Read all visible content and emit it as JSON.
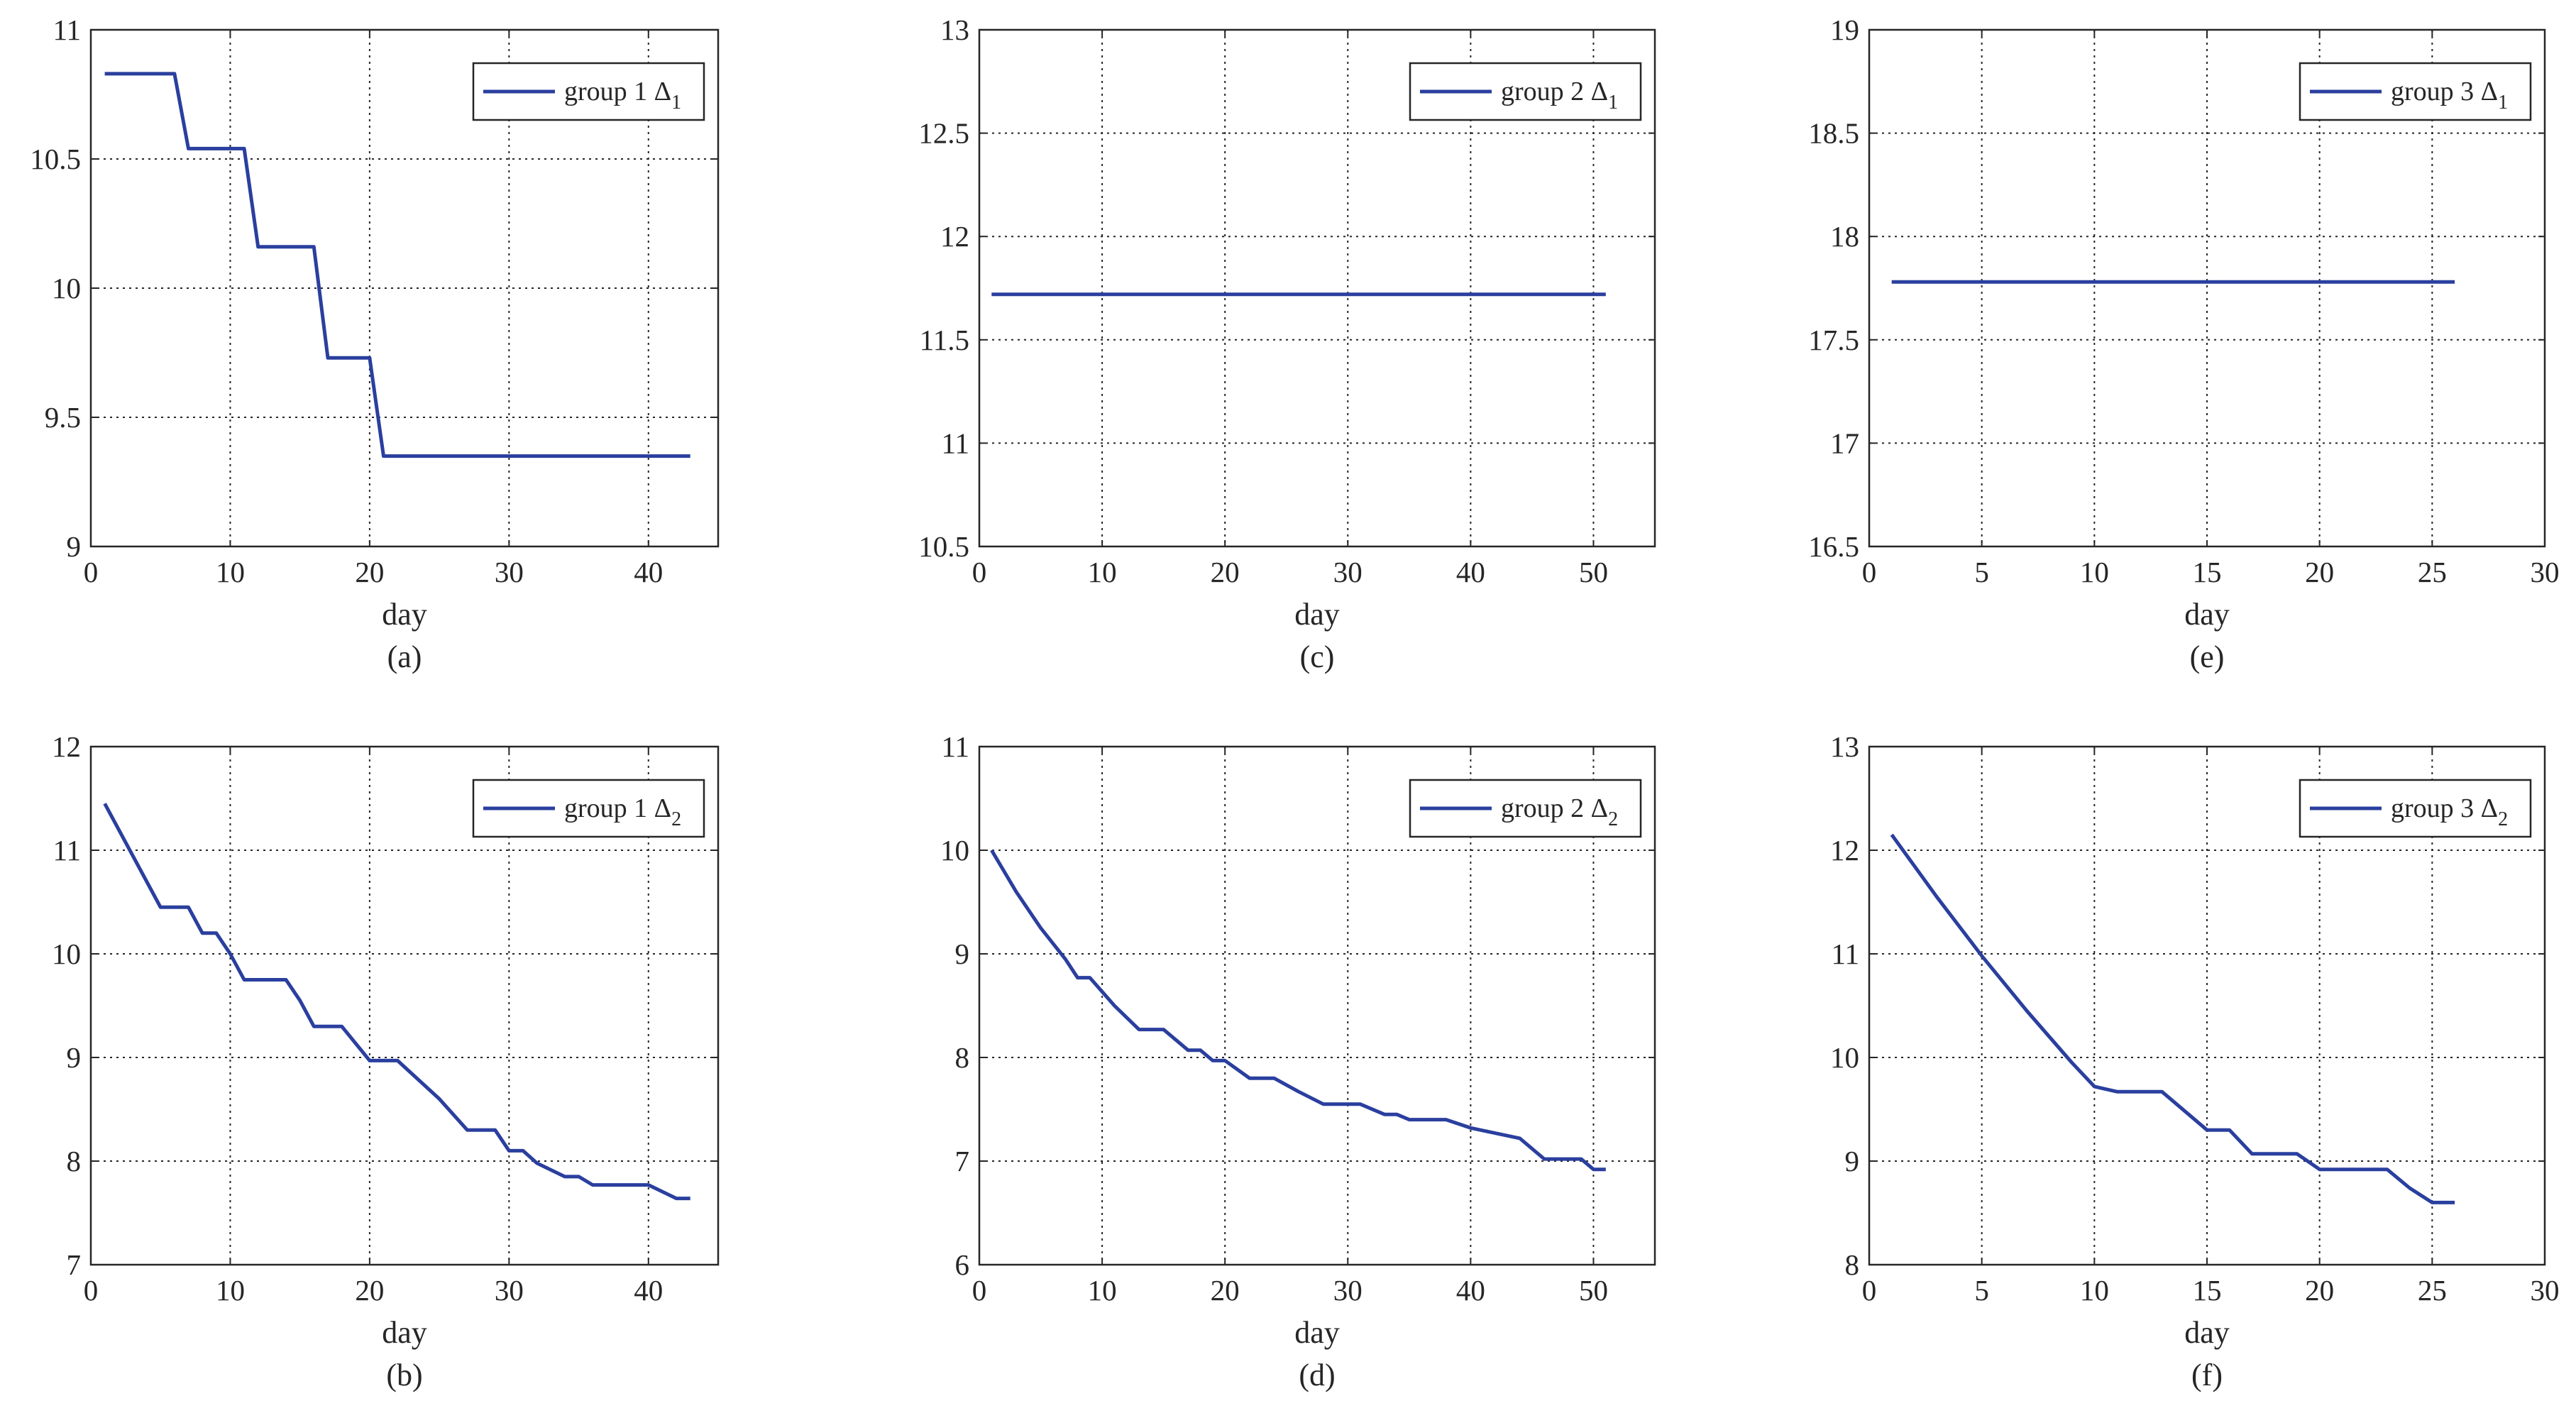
{
  "chart_data": [
    {
      "type": "line",
      "caption": "(a)",
      "xlabel": "day",
      "ylabel": "",
      "xlim": [
        0,
        45
      ],
      "ylim": [
        9,
        11
      ],
      "xticks": [
        0,
        10,
        20,
        30,
        40
      ],
      "yticks": [
        9,
        9.5,
        10,
        10.5,
        11
      ],
      "grid": true,
      "legend_position": "top-right",
      "series": [
        {
          "name": "group 1 Δ",
          "name_subscript": "1",
          "color": "#2a3f9e",
          "x": [
            1,
            6,
            7,
            11,
            12,
            16,
            17,
            20,
            21,
            43
          ],
          "y": [
            10.83,
            10.83,
            10.54,
            10.54,
            10.16,
            10.16,
            9.73,
            9.73,
            9.35,
            9.35
          ]
        }
      ]
    },
    {
      "type": "line",
      "caption": "(b)",
      "xlabel": "day",
      "ylabel": "",
      "xlim": [
        0,
        45
      ],
      "ylim": [
        7,
        12
      ],
      "xticks": [
        0,
        10,
        20,
        30,
        40
      ],
      "yticks": [
        7,
        8,
        9,
        10,
        11,
        12
      ],
      "grid": true,
      "legend_position": "top-right",
      "series": [
        {
          "name": "group 1 Δ",
          "name_subscript": "2",
          "color": "#2a3f9e",
          "x": [
            1,
            3,
            5,
            7,
            8,
            9,
            10,
            11,
            12,
            14,
            15,
            16,
            18,
            20,
            22,
            25,
            27,
            29,
            30,
            31,
            32,
            34,
            35,
            36,
            38,
            40,
            42,
            43
          ],
          "y": [
            11.45,
            10.95,
            10.45,
            10.45,
            10.2,
            10.2,
            10.0,
            9.75,
            9.75,
            9.75,
            9.55,
            9.3,
            9.3,
            8.97,
            8.97,
            8.6,
            8.3,
            8.3,
            8.1,
            8.1,
            7.98,
            7.85,
            7.85,
            7.77,
            7.77,
            7.77,
            7.64,
            7.64
          ]
        }
      ]
    },
    {
      "type": "line",
      "caption": "(c)",
      "xlabel": "day",
      "ylabel": "",
      "xlim": [
        0,
        55
      ],
      "ylim": [
        10.5,
        13
      ],
      "xticks": [
        0,
        10,
        20,
        30,
        40,
        50
      ],
      "yticks": [
        10.5,
        11,
        11.5,
        12,
        12.5,
        13
      ],
      "grid": true,
      "legend_position": "top-right",
      "series": [
        {
          "name": "group 2 Δ",
          "name_subscript": "1",
          "color": "#2a3f9e",
          "x": [
            1,
            51
          ],
          "y": [
            11.72,
            11.72
          ]
        }
      ]
    },
    {
      "type": "line",
      "caption": "(d)",
      "xlabel": "day",
      "ylabel": "",
      "xlim": [
        0,
        55
      ],
      "ylim": [
        6,
        11
      ],
      "xticks": [
        0,
        10,
        20,
        30,
        40,
        50
      ],
      "yticks": [
        6,
        7,
        8,
        9,
        10,
        11
      ],
      "grid": true,
      "legend_position": "top-right",
      "series": [
        {
          "name": "group 2 Δ",
          "name_subscript": "2",
          "color": "#2a3f9e",
          "x": [
            1,
            3,
            5,
            7,
            8,
            9,
            11,
            13,
            15,
            17,
            18,
            19,
            20,
            22,
            24,
            26,
            28,
            31,
            33,
            34,
            35,
            38,
            40,
            44,
            46,
            49,
            50,
            51
          ],
          "y": [
            10.0,
            9.6,
            9.25,
            8.95,
            8.77,
            8.77,
            8.5,
            8.27,
            8.27,
            8.07,
            8.07,
            7.97,
            7.97,
            7.8,
            7.8,
            7.67,
            7.55,
            7.55,
            7.45,
            7.45,
            7.4,
            7.4,
            7.32,
            7.22,
            7.02,
            7.02,
            6.92,
            6.92
          ]
        }
      ]
    },
    {
      "type": "line",
      "caption": "(e)",
      "xlabel": "day",
      "ylabel": "",
      "xlim": [
        0,
        30
      ],
      "ylim": [
        16.5,
        19
      ],
      "xticks": [
        0,
        5,
        10,
        15,
        20,
        25,
        30
      ],
      "yticks": [
        16.5,
        17,
        17.5,
        18,
        18.5,
        19
      ],
      "grid": true,
      "legend_position": "top-right",
      "series": [
        {
          "name": "group 3 Δ",
          "name_subscript": "1",
          "color": "#2a3f9e",
          "x": [
            1,
            26
          ],
          "y": [
            17.78,
            17.78
          ]
        }
      ]
    },
    {
      "type": "line",
      "caption": "(f)",
      "xlabel": "day",
      "ylabel": "",
      "xlim": [
        0,
        30
      ],
      "ylim": [
        8,
        13
      ],
      "xticks": [
        0,
        5,
        10,
        15,
        20,
        25,
        30
      ],
      "yticks": [
        8,
        9,
        10,
        11,
        12,
        13
      ],
      "grid": true,
      "legend_position": "top-right",
      "series": [
        {
          "name": "group 3 Δ",
          "name_subscript": "2",
          "color": "#2a3f9e",
          "x": [
            1,
            3,
            5,
            7,
            9,
            10,
            11,
            13,
            15,
            16,
            17,
            19,
            20,
            23,
            24,
            25,
            26
          ],
          "y": [
            12.15,
            11.55,
            10.98,
            10.45,
            9.95,
            9.72,
            9.67,
            9.67,
            9.3,
            9.3,
            9.07,
            9.07,
            8.92,
            8.92,
            8.74,
            8.6,
            8.6
          ]
        }
      ]
    }
  ]
}
